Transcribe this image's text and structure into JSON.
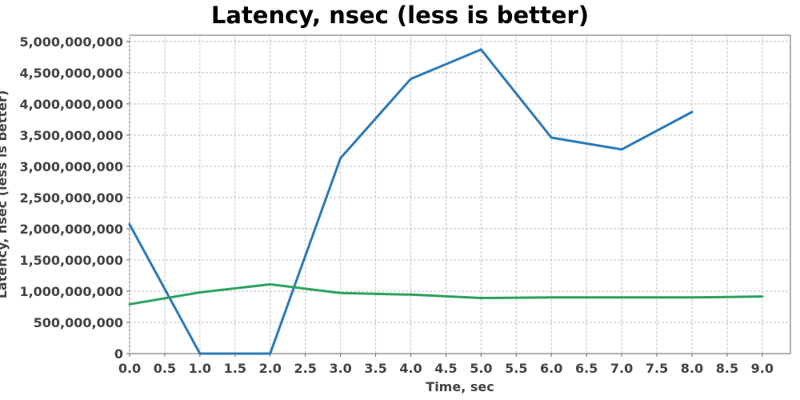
{
  "chart_data": {
    "type": "line",
    "title": "Latency, nsec (less is better)",
    "xlabel": "Time, sec",
    "ylabel": "Latency, nsec (less is better)",
    "xlim": [
      0,
      9.4
    ],
    "ylim": [
      0,
      5100000000
    ],
    "x_ticks": [
      "0.0",
      "0.5",
      "1.0",
      "1.5",
      "2.0",
      "2.5",
      "3.0",
      "3.5",
      "4.0",
      "4.5",
      "5.0",
      "5.5",
      "6.0",
      "6.5",
      "7.0",
      "7.5",
      "8.0",
      "8.5",
      "9.0"
    ],
    "y_ticks": [
      "0",
      "500,000,000",
      "1,000,000,000",
      "1,500,000,000",
      "2,000,000,000",
      "2,500,000,000",
      "3,000,000,000",
      "3,500,000,000",
      "4,000,000,000",
      "4,500,000,000",
      "5,000,000,000"
    ],
    "grid": true,
    "legend": "none",
    "series": [
      {
        "color": "#2b7bb9",
        "x": [
          0,
          1,
          2,
          3,
          4,
          5,
          6,
          7,
          8
        ],
        "y": [
          2070000000,
          0,
          0,
          3130000000,
          4400000000,
          4870000000,
          3460000000,
          3270000000,
          3870000000
        ]
      },
      {
        "color": "#2ca25f",
        "x": [
          0,
          1,
          2,
          3,
          4,
          5,
          6,
          7,
          8,
          9
        ],
        "y": [
          790000000,
          980000000,
          1110000000,
          970000000,
          945000000,
          890000000,
          900000000,
          900000000,
          900000000,
          915000000
        ]
      }
    ]
  }
}
